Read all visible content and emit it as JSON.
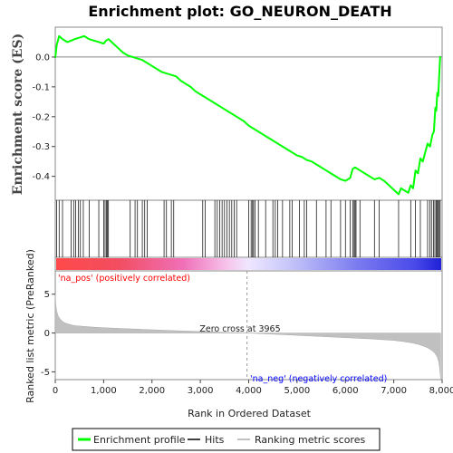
{
  "chart_data": {
    "type": "line",
    "title": "Enrichment plot: GO_NEURON_DEATH",
    "ylabel_top": "Enrichment score (ES)",
    "ylabel_bottom": "Ranked list metric (PreRanked)",
    "xlabel": "Rank in Ordered Dataset",
    "xlim": [
      0,
      8000
    ],
    "ylim_es": [
      -0.48,
      0.1
    ],
    "ylim_metric": [
      -6,
      8
    ],
    "x_ticks": [
      0,
      1000,
      2000,
      3000,
      4000,
      5000,
      6000,
      7000,
      8000
    ],
    "x_tick_labels": [
      "0",
      "1,000",
      "2,000",
      "3,000",
      "4,000",
      "5,000",
      "6,000",
      "7,000",
      "8,000"
    ],
    "es_ticks": [
      0.0,
      -0.1,
      -0.2,
      -0.3,
      -0.4
    ],
    "es_tick_labels": [
      "0.0",
      "-0.1",
      "-0.2",
      "-0.3",
      "-0.4"
    ],
    "metric_ticks": [
      5,
      0,
      -5
    ],
    "metric_tick_labels": [
      "5",
      "0",
      "-5"
    ],
    "grid": false,
    "colors": {
      "es_line": "#00ff00",
      "hits": "#000000",
      "metric": "#c0c0c0",
      "pos_text": "#ff0000",
      "neg_text": "#0000ff"
    },
    "es_curve": {
      "x": [
        0,
        30,
        80,
        150,
        250,
        330,
        400,
        500,
        600,
        700,
        800,
        900,
        1000,
        1050,
        1100,
        1200,
        1300,
        1400,
        1500,
        1600,
        1700,
        1800,
        1900,
        2000,
        2100,
        2200,
        2300,
        2400,
        2500,
        2600,
        2700,
        2800,
        2900,
        3000,
        3100,
        3200,
        3300,
        3400,
        3500,
        3600,
        3700,
        3800,
        3900,
        4000,
        4100,
        4200,
        4300,
        4400,
        4500,
        4600,
        4700,
        4800,
        4900,
        5000,
        5100,
        5200,
        5300,
        5400,
        5500,
        5600,
        5700,
        5800,
        5900,
        6000,
        6100,
        6150,
        6200,
        6300,
        6400,
        6500,
        6600,
        6700,
        6800,
        6900,
        7000,
        7100,
        7150,
        7200,
        7300,
        7350,
        7400,
        7450,
        7500,
        7550,
        7600,
        7650,
        7700,
        7750,
        7800,
        7830,
        7860,
        7880,
        7900,
        7920,
        7940,
        7960
      ],
      "y": [
        -0.003,
        0.04,
        0.07,
        0.06,
        0.05,
        0.055,
        0.06,
        0.065,
        0.07,
        0.06,
        0.055,
        0.05,
        0.045,
        0.055,
        0.06,
        0.045,
        0.03,
        0.015,
        0.005,
        0.0,
        -0.005,
        -0.01,
        -0.02,
        -0.03,
        -0.04,
        -0.05,
        -0.055,
        -0.06,
        -0.065,
        -0.08,
        -0.09,
        -0.1,
        -0.115,
        -0.125,
        -0.135,
        -0.145,
        -0.155,
        -0.165,
        -0.175,
        -0.185,
        -0.195,
        -0.205,
        -0.215,
        -0.23,
        -0.24,
        -0.25,
        -0.26,
        -0.27,
        -0.28,
        -0.29,
        -0.3,
        -0.31,
        -0.32,
        -0.33,
        -0.335,
        -0.345,
        -0.35,
        -0.36,
        -0.37,
        -0.38,
        -0.39,
        -0.4,
        -0.41,
        -0.415,
        -0.405,
        -0.375,
        -0.37,
        -0.38,
        -0.39,
        -0.4,
        -0.41,
        -0.405,
        -0.415,
        -0.43,
        -0.445,
        -0.46,
        -0.44,
        -0.445,
        -0.455,
        -0.43,
        -0.44,
        -0.38,
        -0.39,
        -0.34,
        -0.35,
        -0.32,
        -0.29,
        -0.3,
        -0.26,
        -0.25,
        -0.17,
        -0.18,
        -0.12,
        -0.13,
        -0.06,
        0.003
      ]
    },
    "hits": [
      30,
      80,
      150,
      330,
      380,
      420,
      480,
      520,
      580,
      700,
      900,
      1000,
      1030,
      1060,
      1080,
      1100,
      1550,
      1650,
      1700,
      1800,
      1850,
      1900,
      2250,
      2300,
      2400,
      2450,
      3050,
      3100,
      3300,
      3350,
      3400,
      3450,
      3500,
      3550,
      3600,
      3650,
      3700,
      3750,
      4000,
      4050,
      4080,
      4100,
      4130,
      4200,
      4350,
      4500,
      4550,
      4600,
      4700,
      4850,
      4900,
      5050,
      5150,
      5200,
      5400,
      5600,
      5700,
      5900,
      6000,
      6100,
      6150,
      6180,
      6200,
      6220,
      6300,
      6600,
      6700,
      7100,
      7350,
      7450,
      7550,
      7700,
      7750,
      7780,
      7820,
      7850,
      7880,
      7900,
      7920,
      7940,
      7960
    ],
    "metric_profile": {
      "x": [
        0,
        10,
        30,
        60,
        100,
        150,
        200,
        300,
        400,
        600,
        800,
        1000,
        1500,
        2000,
        2500,
        3000,
        3500,
        3965,
        4500,
        5000,
        5500,
        6000,
        6500,
        7000,
        7200,
        7400,
        7500,
        7600,
        7700,
        7800,
        7850,
        7900,
        7930,
        7950,
        7970
      ],
      "y": [
        5.0,
        3.8,
        2.8,
        2.2,
        1.8,
        1.5,
        1.3,
        1.1,
        0.95,
        0.85,
        0.75,
        0.68,
        0.55,
        0.42,
        0.3,
        0.2,
        0.08,
        0.0,
        -0.15,
        -0.3,
        -0.45,
        -0.6,
        -0.75,
        -0.95,
        -1.1,
        -1.3,
        -1.45,
        -1.65,
        -1.9,
        -2.3,
        -2.6,
        -3.1,
        -3.7,
        -4.6,
        -6.0
      ]
    },
    "zero_cross": 3965,
    "zero_cross_label": "Zero cross at 3965",
    "pos_label": "'na_pos' (positively correlated)",
    "neg_label": "'na_neg' (negatively correlated)",
    "legend": [
      {
        "label": "Enrichment profile",
        "color": "#00ff00"
      },
      {
        "label": "Hits",
        "color": "#000000"
      },
      {
        "label": "Ranking metric scores",
        "color": "#c0c0c0"
      }
    ],
    "legend_position": "bottom"
  }
}
